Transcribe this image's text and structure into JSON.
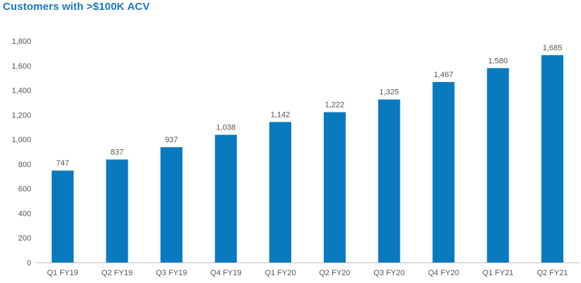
{
  "chart_data": {
    "type": "bar",
    "title": "Customers with >$100K ACV",
    "categories": [
      "Q1 FY19",
      "Q2 FY19",
      "Q3 FY19",
      "Q4 FY19",
      "Q1 FY20",
      "Q2 FY20",
      "Q3 FY20",
      "Q4 FY20",
      "Q1 FY21",
      "Q2 FY21"
    ],
    "values": [
      747,
      837,
      937,
      1038,
      1142,
      1222,
      1325,
      1467,
      1580,
      1685
    ],
    "data_labels": [
      "747",
      "837",
      "937",
      "1,038",
      "1,142",
      "1,222",
      "1,325",
      "1,467",
      "1,580",
      "1,685"
    ],
    "ylim": [
      0,
      1800
    ],
    "yticks": [
      0,
      200,
      400,
      600,
      800,
      1000,
      1200,
      1400,
      1600,
      1800
    ],
    "ytick_labels": [
      "0",
      "200",
      "400",
      "600",
      "800",
      "1,000",
      "1,200",
      "1,400",
      "1,600",
      "1,800"
    ],
    "xlabel": "",
    "ylabel": "",
    "grid": false,
    "legend": false,
    "bar_color": "#0a7abf",
    "title_color": "#1a78c2"
  }
}
